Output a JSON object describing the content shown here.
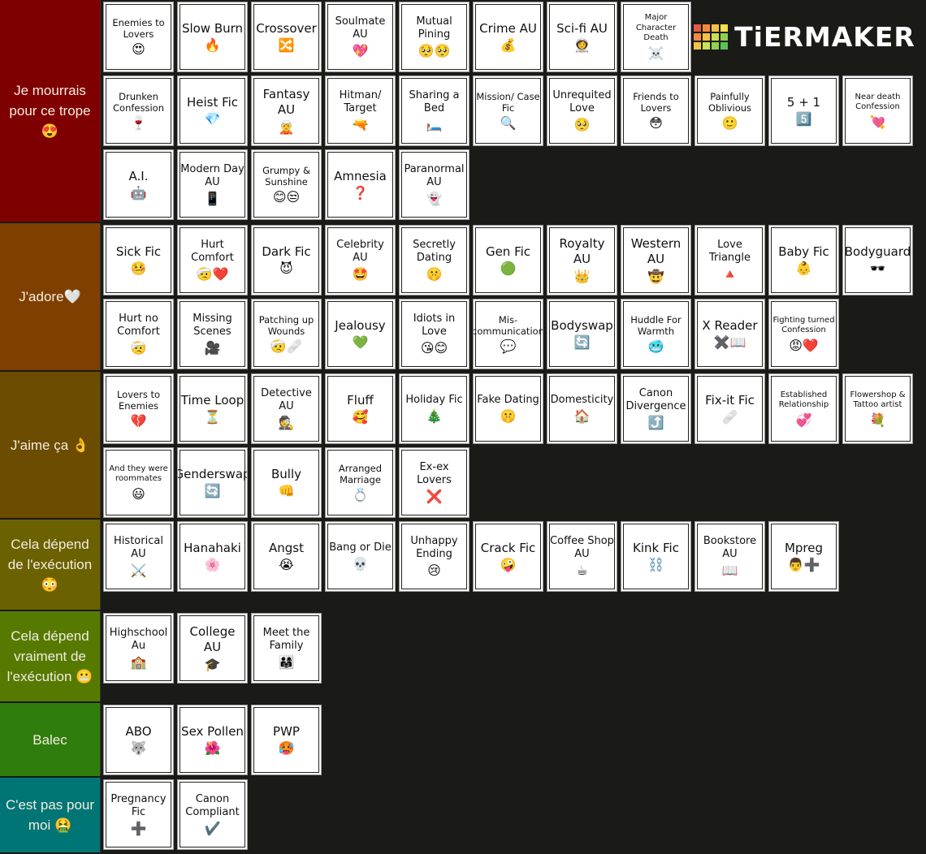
{
  "logo": "TiERMAKER",
  "tiers": [
    {
      "label": "Je mourrais pour ce trope 😍",
      "color": "#7f0000",
      "items": [
        {
          "text": "Enemies to Lovers",
          "icon": "😍"
        },
        {
          "text": "Slow Burn",
          "icon": "🔥"
        },
        {
          "text": "Crossover",
          "icon": "🔀"
        },
        {
          "text": "Soulmate AU",
          "icon": "💖"
        },
        {
          "text": "Mutual Pining",
          "icon": "🥺🥺"
        },
        {
          "text": "Crime AU",
          "icon": "💰"
        },
        {
          "text": "Sci-fi AU",
          "icon": "👩‍🚀"
        },
        {
          "text": "Major Character Death",
          "icon": "☠️"
        },
        {
          "text": "Drunken Confession",
          "icon": "🍷"
        },
        {
          "text": "Heist Fic",
          "icon": "💎"
        },
        {
          "text": "Fantasy AU",
          "icon": "🧝"
        },
        {
          "text": "Hitman/ Target",
          "icon": "🔫"
        },
        {
          "text": "Sharing a Bed",
          "icon": "🛏️"
        },
        {
          "text": "Mission/ Case Fic",
          "icon": "🔍"
        },
        {
          "text": "Unrequited Love",
          "icon": "🥺"
        },
        {
          "text": "Friends to Lovers",
          "icon": "😳"
        },
        {
          "text": "Painfully Oblivious",
          "icon": "🙂"
        },
        {
          "text": "5 + 1",
          "icon": "5️⃣"
        },
        {
          "text": "Near death Confession",
          "icon": "💘"
        },
        {
          "text": "A.I.",
          "icon": "🤖"
        },
        {
          "text": "Modern Day AU",
          "icon": "📱"
        },
        {
          "text": "Grumpy & Sunshine",
          "icon": "😊😒"
        },
        {
          "text": "Amnesia",
          "icon": "❓"
        },
        {
          "text": "Paranormal AU",
          "icon": "👻"
        }
      ]
    },
    {
      "label": "J'adore🤍",
      "color": "#7f3f00",
      "items": [
        {
          "text": "Sick Fic",
          "icon": "🤒"
        },
        {
          "text": "Hurt Comfort",
          "icon": "🤕❤️"
        },
        {
          "text": "Dark Fic",
          "icon": "😈"
        },
        {
          "text": "Celebrity AU",
          "icon": "🤩"
        },
        {
          "text": "Secretly Dating",
          "icon": "🤫"
        },
        {
          "text": "Gen Fic",
          "icon": "🟢"
        },
        {
          "text": "Royalty AU",
          "icon": "👑"
        },
        {
          "text": "Western AU",
          "icon": "🤠"
        },
        {
          "text": "Love Triangle",
          "icon": "🔺"
        },
        {
          "text": "Baby Fic",
          "icon": "👶"
        },
        {
          "text": "Bodyguard",
          "icon": "🕶️"
        },
        {
          "text": "Hurt no Comfort",
          "icon": "🤕"
        },
        {
          "text": "Missing Scenes",
          "icon": "🎥"
        },
        {
          "text": "Patching up Wounds",
          "icon": "🤕🩹"
        },
        {
          "text": "Jealousy",
          "icon": "💚"
        },
        {
          "text": "Idiots in Love",
          "icon": "😘😊"
        },
        {
          "text": "Mis-communication",
          "icon": "💬"
        },
        {
          "text": "Bodyswap",
          "icon": "🔄"
        },
        {
          "text": "Huddle For Warmth",
          "icon": "🥶"
        },
        {
          "text": "X Reader",
          "icon": "✖️📖"
        },
        {
          "text": "Fighting turned Confession",
          "icon": "😡❤️"
        }
      ]
    },
    {
      "label": "J'aime ça 👌",
      "color": "#6b4c00",
      "items": [
        {
          "text": "Lovers to Enemies",
          "icon": "💔"
        },
        {
          "text": "Time Loop",
          "icon": "⏳"
        },
        {
          "text": "Detective AU",
          "icon": "🕵️"
        },
        {
          "text": "Fluff",
          "icon": "🥰"
        },
        {
          "text": "Holiday Fic",
          "icon": "🎄"
        },
        {
          "text": "Fake Dating",
          "icon": "🤫"
        },
        {
          "text": "Domesticity",
          "icon": "🏠"
        },
        {
          "text": "Canon Divergence",
          "icon": "⤴️"
        },
        {
          "text": "Fix-it Fic",
          "icon": "🩹"
        },
        {
          "text": "Established Relationship",
          "icon": "💞"
        },
        {
          "text": "Flowershop & Tattoo artist",
          "icon": "💐"
        },
        {
          "text": "And they were roommates",
          "icon": "😃"
        },
        {
          "text": "Genderswap",
          "icon": "🔄"
        },
        {
          "text": "Bully",
          "icon": "👊"
        },
        {
          "text": "Arranged Marriage",
          "icon": "💍"
        },
        {
          "text": "Ex-ex Lovers",
          "icon": "❌"
        }
      ]
    },
    {
      "label": "Cela dépend de l'exécution 😳",
      "color": "#6b6100",
      "items": [
        {
          "text": "Historical AU",
          "icon": "⚔️"
        },
        {
          "text": "Hanahaki",
          "icon": "🌸"
        },
        {
          "text": "Angst",
          "icon": "😭"
        },
        {
          "text": "Bang or Die",
          "icon": "💀"
        },
        {
          "text": "Unhappy Ending",
          "icon": "😢"
        },
        {
          "text": "Crack Fic",
          "icon": "🤪"
        },
        {
          "text": "Coffee Shop AU",
          "icon": "☕"
        },
        {
          "text": "Kink Fic",
          "icon": "⛓️"
        },
        {
          "text": "Bookstore AU",
          "icon": "📖"
        },
        {
          "text": "Mpreg",
          "icon": "👨➕"
        }
      ]
    },
    {
      "label": "Cela dépend vraiment de l'exécution 😬",
      "color": "#567a00",
      "items": [
        {
          "text": "Highschool Au",
          "icon": "🏫"
        },
        {
          "text": "College AU",
          "icon": "🎓"
        },
        {
          "text": "Meet the Family",
          "icon": "👨‍👩‍👧"
        }
      ]
    },
    {
      "label": "Balec",
      "color": "#2f7d0c",
      "items": [
        {
          "text": "ABO",
          "icon": "🐺"
        },
        {
          "text": "Sex Pollen",
          "icon": "🌺"
        },
        {
          "text": "PWP",
          "icon": "🥵"
        }
      ]
    },
    {
      "label": "C'est pas pour moi 🤮",
      "color": "#007575",
      "items": [
        {
          "text": "Pregnancy Fic",
          "icon": "➕"
        },
        {
          "text": "Canon Compliant",
          "icon": "✔️"
        }
      ]
    }
  ]
}
